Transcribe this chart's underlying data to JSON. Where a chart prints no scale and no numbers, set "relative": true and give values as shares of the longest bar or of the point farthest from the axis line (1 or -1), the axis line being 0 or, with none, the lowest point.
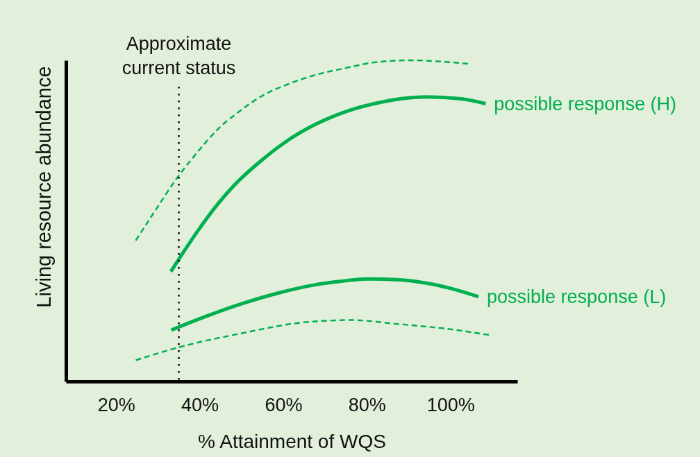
{
  "chart_data": {
    "type": "line",
    "xlabel": "% Attainment of WQS",
    "ylabel": "Living resource abundance",
    "relative": true,
    "xlim": [
      8,
      116
    ],
    "xticks": [
      {
        "value": 20,
        "label": "20%"
      },
      {
        "value": 40,
        "label": "40%"
      },
      {
        "value": 60,
        "label": "60%"
      },
      {
        "value": 80,
        "label": "80%"
      },
      {
        "value": 100,
        "label": "100%"
      }
    ],
    "series": [
      {
        "color": "#00b050",
        "line_style": "dashed",
        "x": [
          24.7,
          29.4,
          34.6,
          39.4,
          44.3,
          49.9,
          55.4,
          61.0,
          66.5,
          74.9,
          82.1,
          90.4,
          97.0,
          104.2
        ],
        "values": [
          0.439,
          0.533,
          0.634,
          0.713,
          0.785,
          0.845,
          0.893,
          0.925,
          0.95,
          0.976,
          0.994,
          1.0,
          0.997,
          0.989
        ]
      },
      {
        "name": "possible response (H)",
        "color": "#00b050",
        "line_style": "solid",
        "x": [
          33.1,
          38.8,
          44.3,
          48.2,
          55.4,
          61.0,
          67.6,
          74.9,
          82.1,
          88.0,
          94.3,
          102.6,
          108.4
        ],
        "values": [
          0.342,
          0.455,
          0.552,
          0.61,
          0.695,
          0.75,
          0.8,
          0.84,
          0.866,
          0.88,
          0.886,
          0.88,
          0.865
        ]
      },
      {
        "name": "possible response (L)",
        "color": "#00b050",
        "line_style": "solid",
        "x": [
          33.2,
          41.2,
          50.1,
          59.0,
          67.2,
          73.9,
          80.6,
          87.2,
          94.7,
          101.4,
          106.7
        ],
        "values": [
          0.16,
          0.201,
          0.242,
          0.276,
          0.3,
          0.312,
          0.319,
          0.317,
          0.305,
          0.285,
          0.264
        ]
      },
      {
        "color": "#00b050",
        "line_style": "dashed",
        "x": [
          24.7,
          35.2,
          50.1,
          64.9,
          76.1,
          87.2,
          98.4,
          109.2
        ],
        "values": [
          0.066,
          0.107,
          0.15,
          0.184,
          0.191,
          0.179,
          0.165,
          0.145
        ]
      }
    ],
    "ref_lines": [
      {
        "axis": "x",
        "value": 35,
        "label": "Approximate\ncurrent status",
        "color": "#000000",
        "line_style": "dotted"
      }
    ]
  }
}
